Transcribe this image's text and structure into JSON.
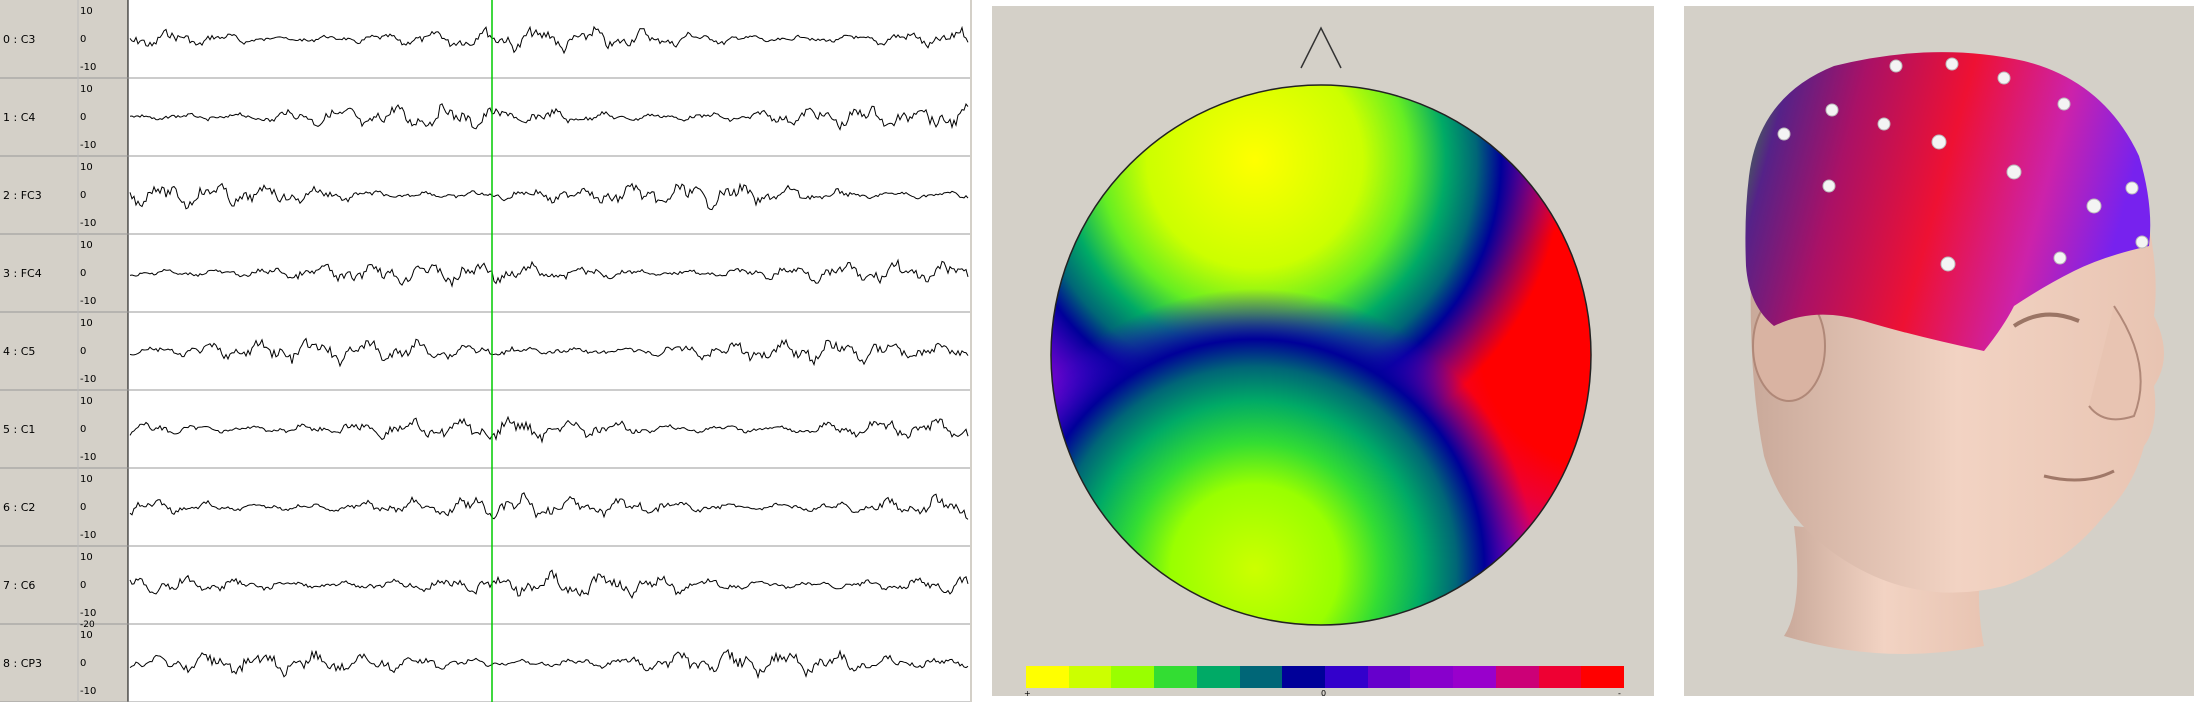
{
  "eeg": {
    "channels": [
      {
        "label": "0 : C3"
      },
      {
        "label": "1 : C4"
      },
      {
        "label": "2 : FC3"
      },
      {
        "label": "3 : FC4"
      },
      {
        "label": "4 : C5"
      },
      {
        "label": "5 : C1"
      },
      {
        "label": "6 : C2"
      },
      {
        "label": "7 : C6"
      },
      {
        "label": "8 : CP3"
      }
    ],
    "tick_labels": [
      "10",
      "0",
      "-10"
    ],
    "extra_tick": "-20",
    "cursor_color": "#00cc00",
    "trace_color": "#000000"
  },
  "topomap": {
    "colorbar": {
      "left_label": "+",
      "mid_label": "0",
      "right_label": "-",
      "colors": [
        "#ffff00",
        "#ccff00",
        "#99ff00",
        "#33dd33",
        "#00aa66",
        "#006677",
        "#000099",
        "#3300cc",
        "#6600cc",
        "#8800cc",
        "#9900cc",
        "#cc0077",
        "#ee0033",
        "#ff0000"
      ]
    }
  },
  "head3d": {
    "label": ""
  }
}
